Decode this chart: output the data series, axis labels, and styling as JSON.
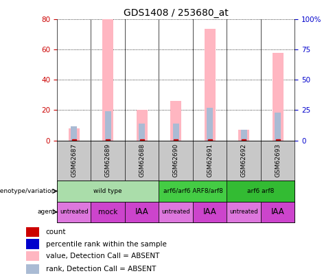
{
  "title": "GDS1408 / 253680_at",
  "samples": [
    "GSM62687",
    "GSM62689",
    "GSM62688",
    "GSM62690",
    "GSM62691",
    "GSM62692",
    "GSM62693"
  ],
  "value_absent": [
    8,
    80,
    20,
    26,
    74,
    7,
    58
  ],
  "rank_absent": [
    9.5,
    19.5,
    11,
    11,
    21.5,
    7,
    18.5
  ],
  "ylim_left": [
    0,
    80
  ],
  "ylim_right": [
    0,
    100
  ],
  "yticks_left": [
    0,
    20,
    40,
    60,
    80
  ],
  "yticks_right": [
    0,
    25,
    50,
    75,
    100
  ],
  "ytick_labels_right": [
    "0",
    "25",
    "50",
    "75",
    "100%"
  ],
  "value_absent_color": "#FFB6C1",
  "rank_absent_color": "#AABBD4",
  "count_color": "#CC0000",
  "rank_color": "#0000CC",
  "axis_label_color_left": "#CC0000",
  "axis_label_color_right": "#0000CC",
  "title_fontsize": 10,
  "genotype_groups": [
    {
      "label": "wild type",
      "start": 0,
      "end": 3,
      "color": "#AADDAA"
    },
    {
      "label": "arf6/arf6 ARF8/arf8",
      "start": 3,
      "end": 5,
      "color": "#44CC44"
    },
    {
      "label": "arf6 arf8",
      "start": 5,
      "end": 7,
      "color": "#33BB33"
    }
  ],
  "agent_groups": [
    {
      "label": "untreated",
      "start": 0,
      "end": 1,
      "color": "#DD77DD"
    },
    {
      "label": "mock",
      "start": 1,
      "end": 2,
      "color": "#CC44CC"
    },
    {
      "label": "IAA",
      "start": 2,
      "end": 3,
      "color": "#CC44CC"
    },
    {
      "label": "untreated",
      "start": 3,
      "end": 4,
      "color": "#DD77DD"
    },
    {
      "label": "IAA",
      "start": 4,
      "end": 5,
      "color": "#CC44CC"
    },
    {
      "label": "untreated",
      "start": 5,
      "end": 6,
      "color": "#DD77DD"
    },
    {
      "label": "IAA",
      "start": 6,
      "end": 7,
      "color": "#CC44CC"
    }
  ],
  "legend_items": [
    {
      "label": "count",
      "color": "#CC0000"
    },
    {
      "label": "percentile rank within the sample",
      "color": "#0000CC"
    },
    {
      "label": "value, Detection Call = ABSENT",
      "color": "#FFB6C1"
    },
    {
      "label": "rank, Detection Call = ABSENT",
      "color": "#AABBD4"
    }
  ]
}
